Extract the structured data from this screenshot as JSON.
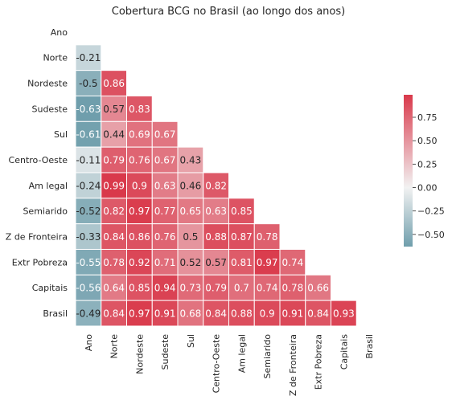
{
  "chart_data": {
    "type": "heatmap",
    "title": "Cobertura BCG no Brasil (ao longo dos anos)",
    "labels": [
      "Ano",
      "Norte",
      "Nordeste",
      "Sudeste",
      "Sul",
      "Centro-Oeste",
      "Am legal",
      "Semiarido",
      "Z de Fronteira",
      "Extr Pobreza",
      "Capitais",
      "Brasil"
    ],
    "matrix": [
      [],
      [
        "-0.21"
      ],
      [
        "-0.5",
        "0.86"
      ],
      [
        "-0.63",
        "0.57",
        "0.83"
      ],
      [
        "-0.61",
        "0.44",
        "0.69",
        "0.67"
      ],
      [
        "-0.11",
        "0.79",
        "0.76",
        "0.67",
        "0.43"
      ],
      [
        "-0.24",
        "0.99",
        "0.9",
        "0.63",
        "0.46",
        "0.82"
      ],
      [
        "-0.52",
        "0.82",
        "0.97",
        "0.77",
        "0.65",
        "0.63",
        "0.85"
      ],
      [
        "-0.33",
        "0.84",
        "0.86",
        "0.76",
        "0.5",
        "0.88",
        "0.87",
        "0.78"
      ],
      [
        "-0.55",
        "0.78",
        "0.92",
        "0.71",
        "0.52",
        "0.57",
        "0.81",
        "0.97",
        "0.74"
      ],
      [
        "-0.56",
        "0.64",
        "0.85",
        "0.94",
        "0.73",
        "0.79",
        "0.7",
        "0.74",
        "0.78",
        "0.66"
      ],
      [
        "-0.49",
        "0.84",
        "0.97",
        "0.91",
        "0.68",
        "0.84",
        "0.88",
        "0.9",
        "0.91",
        "0.84",
        "0.93"
      ]
    ],
    "mask": "upper-triangle-and-diagonal",
    "colorbar": {
      "vmin": -0.63,
      "vmax": 0.99,
      "ticks": [
        -0.5,
        -0.25,
        0.0,
        0.25,
        0.5,
        0.75
      ],
      "tick_labels": [
        "−0.50",
        "−0.25",
        "0.00",
        "0.25",
        "0.50",
        "0.75"
      ],
      "position": "right"
    },
    "colors": {
      "negative": "#6f9eac",
      "center": "#f2f2f2",
      "positive": "#d9394b",
      "text_light": "#ffffff",
      "text_dark": "#262626"
    }
  }
}
